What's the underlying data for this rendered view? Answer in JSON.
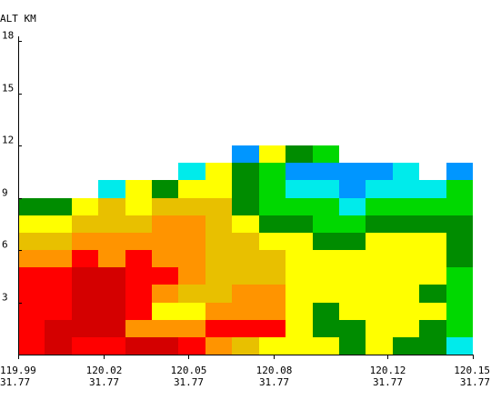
{
  "chart_data": {
    "type": "heatmap",
    "title": "",
    "ylabel": "ALT KM",
    "xlabel": "",
    "ylim": [
      0,
      18
    ],
    "yticks": [
      {
        "value": 3,
        "label": "3"
      },
      {
        "value": 6,
        "label": "6"
      },
      {
        "value": 9,
        "label": "9"
      },
      {
        "value": 12,
        "label": "12"
      },
      {
        "value": 15,
        "label": "15"
      },
      {
        "value": 18,
        "label": "18"
      }
    ],
    "xlim": [
      119.99,
      120.15
    ],
    "xticks": [
      {
        "value": 119.99,
        "lon": "119.99",
        "lat": "31.77"
      },
      {
        "value": 120.02,
        "lon": "120.02",
        "lat": "31.77"
      },
      {
        "value": 120.05,
        "lon": "120.05",
        "lat": "31.77"
      },
      {
        "value": 120.08,
        "lon": "120.08",
        "lat": "31.77"
      },
      {
        "value": 120.12,
        "lon": "120.12",
        "lat": "31.77"
      },
      {
        "value": 120.15,
        "lon": "120.15",
        "lat": "31.77"
      }
    ],
    "grid": false,
    "legend": "none",
    "n_columns": 17,
    "cell_height_km": 1,
    "palette": {
      "R": "#ff0000",
      "D": "#d40000",
      "O": "#ff9400",
      "G": "#e8c000",
      "Y": "#ffff00",
      "K": "#008c00",
      "L": "#00d800",
      "C": "#00ebeb",
      "B": "#0096ff"
    },
    "rows": [
      {
        "top_km": 12,
        "cells": "........BYKL....."
      },
      {
        "top_km": 11,
        "cells": "......CYKLBBBBC.B"
      },
      {
        "top_km": 10,
        "cells": "...CYKYYKLCCBCCCL"
      },
      {
        "top_km": 9,
        "cells": "KKYGYGGGKLLLCLLLL"
      },
      {
        "top_km": 8,
        "cells": "YYGGGOOGYKKLLKKKK"
      },
      {
        "top_km": 7,
        "cells": "GGOOOOOGGYYKKYYYK"
      },
      {
        "top_km": 6,
        "cells": "OOROROOGGGYYYYYYK"
      },
      {
        "top_km": 5,
        "cells": "RRDDRROGGGYYYYYYL"
      },
      {
        "top_km": 4,
        "cells": "RRDDROGGOOYYYYYKL"
      },
      {
        "top_km": 3,
        "cells": "RRDDRYYOOOYKYYYYL"
      },
      {
        "top_km": 2,
        "cells": "RDDDOOORRRYKKYYKL"
      },
      {
        "top_km": 1,
        "cells": "RDRRDDROGYYYKYKKC"
      }
    ]
  }
}
